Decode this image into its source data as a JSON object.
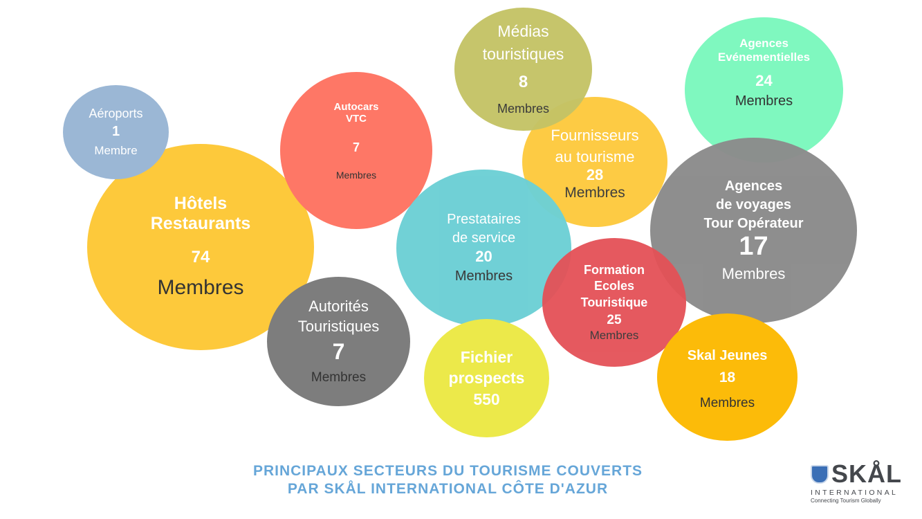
{
  "bubbles": {
    "hotels": {
      "line1": "Hôtels",
      "line2": "Restaurants",
      "count": "74",
      "unit": "Membres",
      "color": "#fdc93b"
    },
    "aeroports": {
      "line1": "Aéroports",
      "count": "1",
      "unit": "Membre",
      "color": "#9bb7d5"
    },
    "autocars": {
      "line1": "Autocars",
      "line2": "VTC",
      "count": "7",
      "unit": "Membres",
      "color": "#fe7766"
    },
    "medias": {
      "line1": "Médias",
      "line2": "touristiques",
      "count": "8",
      "unit": "Membres",
      "color": "#c4c366"
    },
    "fournisseurs": {
      "line1": "Fournisseurs",
      "line2": "au tourisme",
      "count": "28",
      "unit": "Membres",
      "color": "#fdc93b"
    },
    "agences_evenementielles": {
      "line1": "Agences",
      "line2": "Evénementielles",
      "count": "24",
      "unit": "Membres",
      "color": "#7ff8bf"
    },
    "agences_voyages": {
      "line1": "Agences",
      "line2": "de voyages",
      "line3": "Tour Opérateur",
      "count": "17",
      "unit": "Membres",
      "color": "#8b8b8b"
    },
    "prestataires": {
      "line1": "Prestataires",
      "line2": "de service",
      "count": "20",
      "unit": "Membres",
      "color": "#6ccfd5"
    },
    "formation": {
      "line1": "Formation",
      "line2": "Ecoles",
      "line3": "Touristique",
      "count": "25",
      "unit": "Membres",
      "color": "#e45157"
    },
    "autorites": {
      "line1": "Autorités",
      "line2": "Touristiques",
      "count": "7",
      "unit": "Membres",
      "color": "#7d7d7d"
    },
    "fichier": {
      "line1": "Fichier",
      "line2": "prospects",
      "count": "550",
      "color": "#ece94a"
    },
    "skal_jeunes": {
      "line1": "Skal Jeunes",
      "count": "18",
      "unit": "Membres",
      "color": "#fcbb09"
    }
  },
  "footer": {
    "title_line1": "PRINCIPAUX SECTEURS DU TOURISME COUVERTS",
    "title_line2": "PAR SKÅL INTERNATIONAL CÔTE D'AZUR"
  },
  "logo": {
    "name": "SKÅL",
    "subtitle": "INTERNATIONAL",
    "tagline": "Connecting Tourism Globally",
    "icon": "skal-shield-icon"
  }
}
